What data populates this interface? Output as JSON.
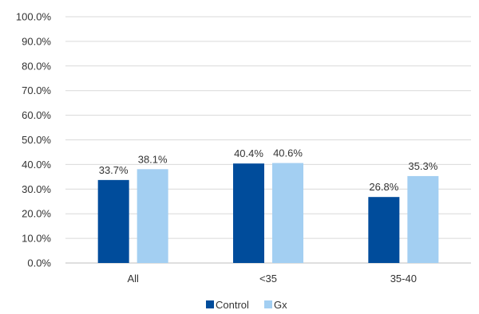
{
  "chart_data": {
    "type": "bar",
    "title": "",
    "xlabel": "",
    "ylabel": "",
    "categories": [
      "All",
      "<35",
      "35-40"
    ],
    "series": [
      {
        "name": "Control",
        "values": [
          33.7,
          40.4,
          26.8
        ],
        "labels": [
          "33.7%",
          "40.4%",
          "26.8%"
        ],
        "color": "#004C9B"
      },
      {
        "name": "Gx",
        "values": [
          38.1,
          40.6,
          35.3
        ],
        "labels": [
          "38.1%",
          "40.6%",
          "35.3%"
        ],
        "color": "#A3CFF2"
      }
    ],
    "ylim": [
      0,
      100
    ],
    "yticks": [
      "0.0%",
      "10.0%",
      "20.0%",
      "30.0%",
      "40.0%",
      "50.0%",
      "60.0%",
      "70.0%",
      "80.0%",
      "90.0%",
      "100.0%"
    ],
    "grid": true,
    "gridColor": "#D9D9D9",
    "legend": "bottom-center"
  }
}
